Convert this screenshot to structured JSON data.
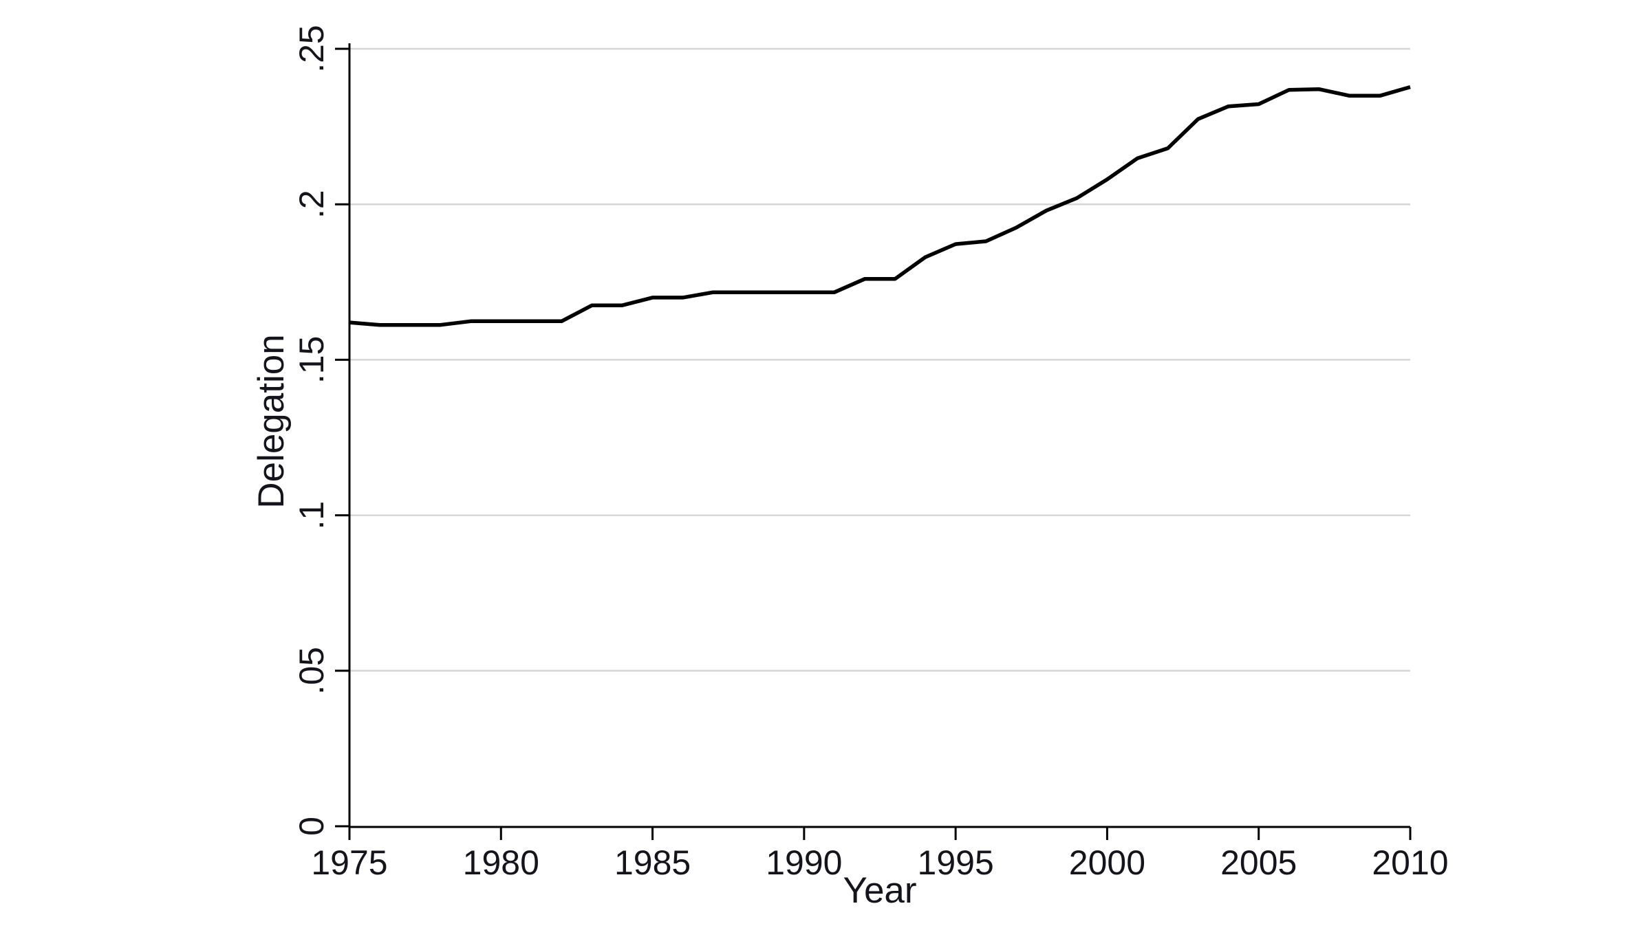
{
  "chart_data": {
    "type": "line",
    "title": "",
    "xlabel": "Year",
    "ylabel": "Delegation",
    "x": [
      1975,
      1976,
      1977,
      1978,
      1979,
      1980,
      1981,
      1982,
      1983,
      1984,
      1985,
      1986,
      1987,
      1988,
      1989,
      1990,
      1991,
      1992,
      1993,
      1994,
      1995,
      1996,
      1997,
      1998,
      1999,
      2000,
      2001,
      2002,
      2003,
      2004,
      2005,
      2006,
      2007,
      2008,
      2009,
      2010
    ],
    "values": [
      0.162,
      0.1612,
      0.1612,
      0.1612,
      0.1624,
      0.1624,
      0.1624,
      0.1624,
      0.1675,
      0.1675,
      0.17,
      0.17,
      0.1717,
      0.1717,
      0.1717,
      0.1717,
      0.1717,
      0.176,
      0.176,
      0.183,
      0.1872,
      0.1881,
      0.1925,
      0.198,
      0.202,
      0.208,
      0.2148,
      0.218,
      0.2274,
      0.2315,
      0.2322,
      0.2368,
      0.237,
      0.2349,
      0.2349,
      0.2377
    ],
    "xlim": [
      1975,
      2010
    ],
    "ylim": [
      0,
      0.25
    ],
    "xticks": [
      1975,
      1980,
      1985,
      1990,
      1995,
      2000,
      2005,
      2010
    ],
    "xtick_labels": [
      "1975",
      "1980",
      "1985",
      "1990",
      "1995",
      "2000",
      "2005",
      "2010"
    ],
    "yticks": [
      0,
      0.05,
      0.1,
      0.15,
      0.2,
      0.25
    ],
    "ytick_labels": [
      "0",
      ".05",
      ".1",
      ".15",
      ".2",
      ".25"
    ],
    "grid": "horizontal-on",
    "legend": "none",
    "line_color": "#000000",
    "grid_color": "#d6d6d6",
    "axis_color": "#000000",
    "text_color": "#14141c",
    "background_color": "#ffffff"
  }
}
